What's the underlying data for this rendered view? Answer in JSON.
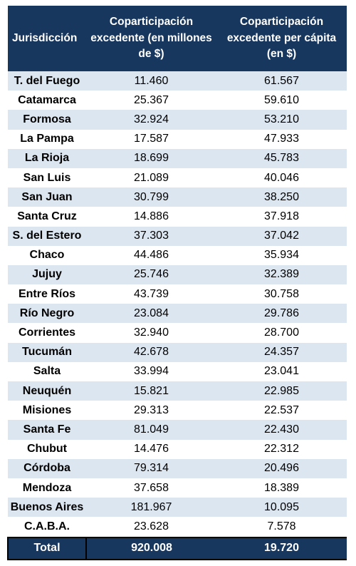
{
  "table": {
    "headers": {
      "jurisdiccion": "Jurisdicción",
      "coparticipacion_millones": "Coparticipación excedente (en millones de $)",
      "coparticipacion_per_capita": "Coparticipación excedente per cápita (en $)"
    },
    "rows": [
      {
        "jurisdiccion": "T. del Fuego",
        "millones": "11.460",
        "per_capita": "61.567"
      },
      {
        "jurisdiccion": "Catamarca",
        "millones": "25.367",
        "per_capita": "59.610"
      },
      {
        "jurisdiccion": "Formosa",
        "millones": "32.924",
        "per_capita": "53.210"
      },
      {
        "jurisdiccion": "La Pampa",
        "millones": "17.587",
        "per_capita": "47.933"
      },
      {
        "jurisdiccion": "La Rioja",
        "millones": "18.699",
        "per_capita": "45.783"
      },
      {
        "jurisdiccion": "San Luis",
        "millones": "21.089",
        "per_capita": "40.046"
      },
      {
        "jurisdiccion": "San Juan",
        "millones": "30.799",
        "per_capita": "38.250"
      },
      {
        "jurisdiccion": "Santa Cruz",
        "millones": "14.886",
        "per_capita": "37.918"
      },
      {
        "jurisdiccion": "S. del Estero",
        "millones": "37.303",
        "per_capita": "37.042"
      },
      {
        "jurisdiccion": "Chaco",
        "millones": "44.486",
        "per_capita": "35.934"
      },
      {
        "jurisdiccion": "Jujuy",
        "millones": "25.746",
        "per_capita": "32.389"
      },
      {
        "jurisdiccion": "Entre Ríos",
        "millones": "43.739",
        "per_capita": "30.758"
      },
      {
        "jurisdiccion": "Río Negro",
        "millones": "23.084",
        "per_capita": "29.786"
      },
      {
        "jurisdiccion": "Corrientes",
        "millones": "32.940",
        "per_capita": "28.700"
      },
      {
        "jurisdiccion": "Tucumán",
        "millones": "42.678",
        "per_capita": "24.357"
      },
      {
        "jurisdiccion": "Salta",
        "millones": "33.994",
        "per_capita": "23.041"
      },
      {
        "jurisdiccion": "Neuquén",
        "millones": "15.821",
        "per_capita": "22.985"
      },
      {
        "jurisdiccion": "Misiones",
        "millones": "29.313",
        "per_capita": "22.537"
      },
      {
        "jurisdiccion": "Santa Fe",
        "millones": "81.049",
        "per_capita": "22.430"
      },
      {
        "jurisdiccion": "Chubut",
        "millones": "14.476",
        "per_capita": "22.312"
      },
      {
        "jurisdiccion": "Córdoba",
        "millones": "79.314",
        "per_capita": "20.496"
      },
      {
        "jurisdiccion": "Mendoza",
        "millones": "37.658",
        "per_capita": "18.389"
      },
      {
        "jurisdiccion": "Buenos Aires",
        "millones": "181.967",
        "per_capita": "10.095"
      },
      {
        "jurisdiccion": "C.A.B.A.",
        "millones": "23.628",
        "per_capita": "7.578"
      }
    ],
    "total": {
      "label": "Total",
      "millones": "920.008",
      "per_capita": "19.720"
    }
  },
  "colors": {
    "header_bg": "#17375e",
    "band_row": "#dce6f1",
    "plain_row": "#ffffff"
  }
}
